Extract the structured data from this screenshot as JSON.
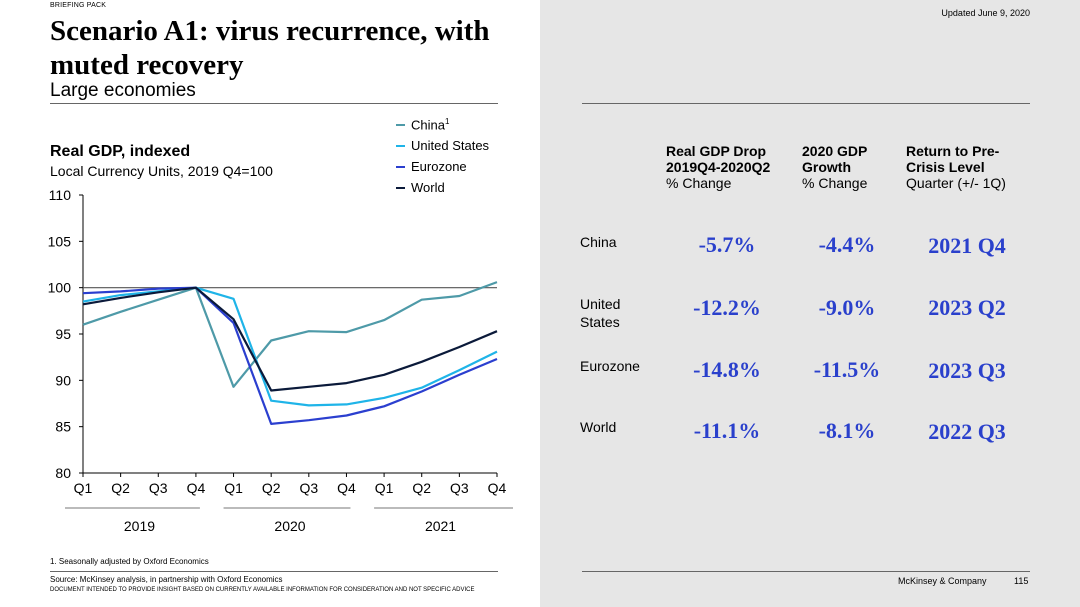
{
  "header": {
    "briefing": "BRIEFING PACK",
    "title": "Scenario A1: virus recurrence, with muted recovery",
    "subtitle": "Large economies",
    "updated": "Updated June 9, 2020"
  },
  "chart": {
    "title": "Real GDP, indexed",
    "subtitle": "Local Currency Units, 2019 Q4=100",
    "legend": [
      {
        "label": "China",
        "sup": "1",
        "color": "#4e9aa8"
      },
      {
        "label": "United States",
        "sup": "",
        "color": "#1fb4e8"
      },
      {
        "label": "Eurozone",
        "sup": "",
        "color": "#2b3fcf"
      },
      {
        "label": "World",
        "sup": "",
        "color": "#0b1a3a"
      }
    ],
    "years": [
      "2019",
      "2020",
      "2021"
    ]
  },
  "chart_data": {
    "type": "line",
    "title": "Real GDP, indexed",
    "ylabel": "Local Currency Units, 2019 Q4=100",
    "x": [
      "Q1",
      "Q2",
      "Q3",
      "Q4",
      "Q1",
      "Q2",
      "Q3",
      "Q4",
      "Q1",
      "Q2",
      "Q3",
      "Q4"
    ],
    "x_groups": [
      {
        "label": "2019",
        "span": [
          0,
          3
        ]
      },
      {
        "label": "2020",
        "span": [
          4,
          7
        ]
      },
      {
        "label": "2021",
        "span": [
          8,
          11
        ]
      }
    ],
    "ylim": [
      80,
      110
    ],
    "yticks": [
      80,
      85,
      90,
      95,
      100,
      105,
      110
    ],
    "reference_line": 100,
    "grid": false,
    "legend_position": "top-right",
    "series": [
      {
        "name": "China",
        "color": "#4e9aa8",
        "values": [
          96.0,
          97.4,
          98.7,
          100.0,
          89.3,
          94.3,
          95.3,
          95.2,
          96.5,
          98.7,
          99.1,
          100.6
        ]
      },
      {
        "name": "United States",
        "color": "#1fb4e8",
        "values": [
          98.5,
          99.2,
          99.6,
          100.0,
          98.8,
          87.8,
          87.3,
          87.4,
          88.1,
          89.2,
          91.1,
          93.1
        ]
      },
      {
        "name": "Eurozone",
        "color": "#2b3fcf",
        "values": [
          99.4,
          99.6,
          99.9,
          100.0,
          96.2,
          85.3,
          85.7,
          86.2,
          87.2,
          88.8,
          90.6,
          92.3
        ]
      },
      {
        "name": "World",
        "color": "#0b1a3a",
        "values": [
          98.2,
          98.9,
          99.5,
          100.0,
          96.6,
          88.9,
          89.3,
          89.7,
          90.6,
          92.0,
          93.6,
          95.3
        ]
      }
    ]
  },
  "table": {
    "headers": [
      {
        "bold1": "Real GDP Drop",
        "bold2": "2019Q4-2020Q2",
        "sub": "% Change"
      },
      {
        "bold1": "2020 GDP",
        "bold2": "Growth",
        "sub": "% Change"
      },
      {
        "bold1": "Return to Pre-",
        "bold2": "Crisis Level",
        "sub": "Quarter (+/- 1Q)"
      }
    ],
    "rows": [
      {
        "label": "China",
        "drop": "-5.7%",
        "growth": "-4.4%",
        "return": "2021 Q4"
      },
      {
        "label": "United States",
        "drop": "-12.2%",
        "growth": "-9.0%",
        "return": "2023 Q2"
      },
      {
        "label": "Eurozone",
        "drop": "-14.8%",
        "growth": "-11.5%",
        "return": "2023 Q3"
      },
      {
        "label": "World",
        "drop": "-11.1%",
        "growth": "-8.1%",
        "return": "2022 Q3"
      }
    ]
  },
  "footer": {
    "footnote": "1.   Seasonally adjusted by Oxford Economics",
    "source": "Source: McKinsey analysis, in partnership with Oxford Economics",
    "disclaimer": "DOCUMENT INTENDED TO PROVIDE INSIGHT BASED ON CURRENTLY AVAILABLE INFORMATION FOR CONSIDERATION AND NOT SPECIFIC ADVICE",
    "company": "McKinsey & Company",
    "page": "115"
  }
}
